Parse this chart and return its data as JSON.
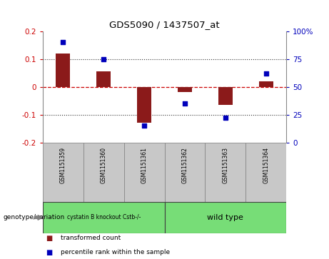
{
  "title": "GDS5090 / 1437507_at",
  "samples": [
    "GSM1151359",
    "GSM1151360",
    "GSM1151361",
    "GSM1151362",
    "GSM1151363",
    "GSM1151364"
  ],
  "bar_values": [
    0.12,
    0.055,
    -0.13,
    -0.02,
    -0.065,
    0.02
  ],
  "dot_values_pct": [
    90,
    75,
    15,
    35,
    22,
    62
  ],
  "ylim_left": [
    -0.2,
    0.2
  ],
  "ylim_right": [
    0,
    100
  ],
  "yticks_left": [
    -0.2,
    -0.1,
    0.0,
    0.1,
    0.2
  ],
  "yticks_right": [
    0,
    25,
    50,
    75,
    100
  ],
  "ytick_labels_left": [
    "-0.2",
    "-0.1",
    "0",
    "0.1",
    "0.2"
  ],
  "ytick_labels_right": [
    "0",
    "25",
    "50",
    "75",
    "100%"
  ],
  "hlines_dotted": [
    0.1,
    -0.1
  ],
  "zero_line_value": 0.0,
  "bar_color": "#8B1A1A",
  "dot_color": "#0000BB",
  "zero_line_color": "#CC0000",
  "hline_color": "#333333",
  "bg_color": "#FFFFFF",
  "plot_bg": "#FFFFFF",
  "group1_label": "cystatin B knockout Cstb-/-",
  "group2_label": "wild type",
  "group_color": "#77DD77",
  "genotype_label": "genotype/variation",
  "legend_bar_label": "transformed count",
  "legend_dot_label": "percentile rank within the sample",
  "left_tick_color": "#CC0000",
  "right_tick_color": "#0000BB",
  "sample_box_color": "#C8C8C8",
  "arrow_color": "#808080"
}
